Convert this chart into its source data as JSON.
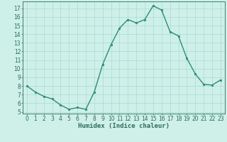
{
  "x": [
    0,
    1,
    2,
    3,
    4,
    5,
    6,
    7,
    8,
    9,
    10,
    11,
    12,
    13,
    14,
    15,
    16,
    17,
    18,
    19,
    20,
    21,
    22,
    23
  ],
  "y": [
    8.0,
    7.3,
    6.8,
    6.5,
    5.8,
    5.3,
    5.5,
    5.3,
    7.3,
    10.5,
    12.8,
    14.7,
    15.7,
    15.3,
    15.7,
    17.3,
    16.8,
    14.3,
    13.8,
    11.2,
    9.4,
    8.2,
    8.1,
    8.7
  ],
  "line_color": "#2e8b7a",
  "marker": "o",
  "marker_size": 1.8,
  "line_width": 1.0,
  "bg_color": "#cef0e8",
  "grid_color": "#9ed8cc",
  "xlabel": "Humidex (Indice chaleur)",
  "xlim": [
    -0.5,
    23.5
  ],
  "ylim": [
    4.8,
    17.8
  ],
  "yticks": [
    5,
    6,
    7,
    8,
    9,
    10,
    11,
    12,
    13,
    14,
    15,
    16,
    17
  ],
  "xticks": [
    0,
    1,
    2,
    3,
    4,
    5,
    6,
    7,
    8,
    9,
    10,
    11,
    12,
    13,
    14,
    15,
    16,
    17,
    18,
    19,
    20,
    21,
    22,
    23
  ],
  "tick_fontsize": 5.5,
  "xlabel_fontsize": 6.5,
  "axis_color": "#2e6b5a"
}
